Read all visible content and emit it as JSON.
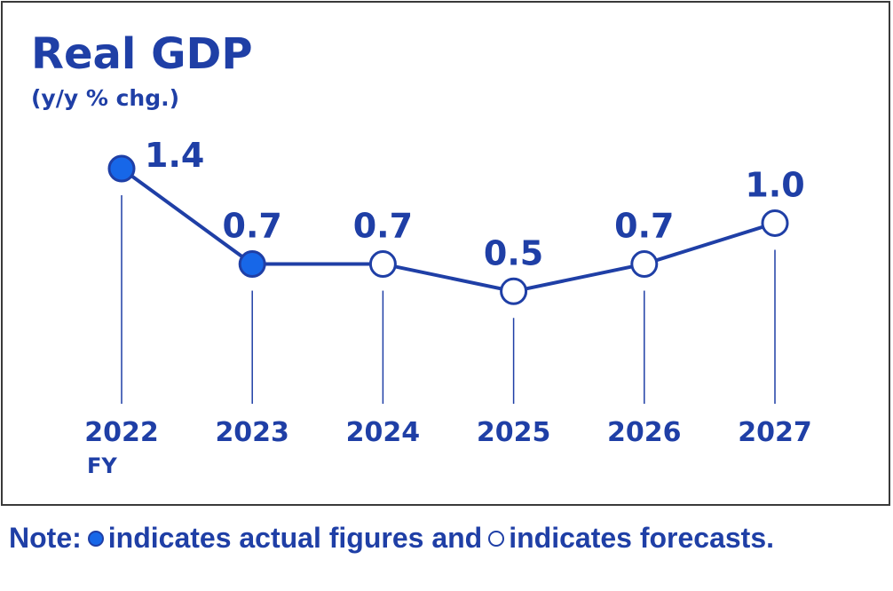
{
  "colors": {
    "accent": "#1f3fa6",
    "actual_fill": "#1767e8",
    "forecast_fill": "#ffffff",
    "frame": "#3a3a3a"
  },
  "chart_data": {
    "type": "line",
    "title": "Real GDP",
    "subtitle": "(y/y % chg.)",
    "categories": [
      "2022",
      "2023",
      "2024",
      "2025",
      "2026",
      "2027"
    ],
    "x_unit_label": "FY",
    "values": [
      1.4,
      0.7,
      0.7,
      0.5,
      0.7,
      1.0
    ],
    "data_labels": [
      "1.4",
      "0.7",
      "0.7",
      "0.5",
      "0.7",
      "1.0"
    ],
    "point_kinds": [
      "actual",
      "actual",
      "forecast",
      "forecast",
      "forecast",
      "forecast"
    ],
    "ylim": [
      0.3,
      1.4
    ],
    "grid": false,
    "legend": "none"
  },
  "note": {
    "prefix": "Note:",
    "actual_text": "indicates actual figures and",
    "forecast_text": "indicates forecasts."
  }
}
